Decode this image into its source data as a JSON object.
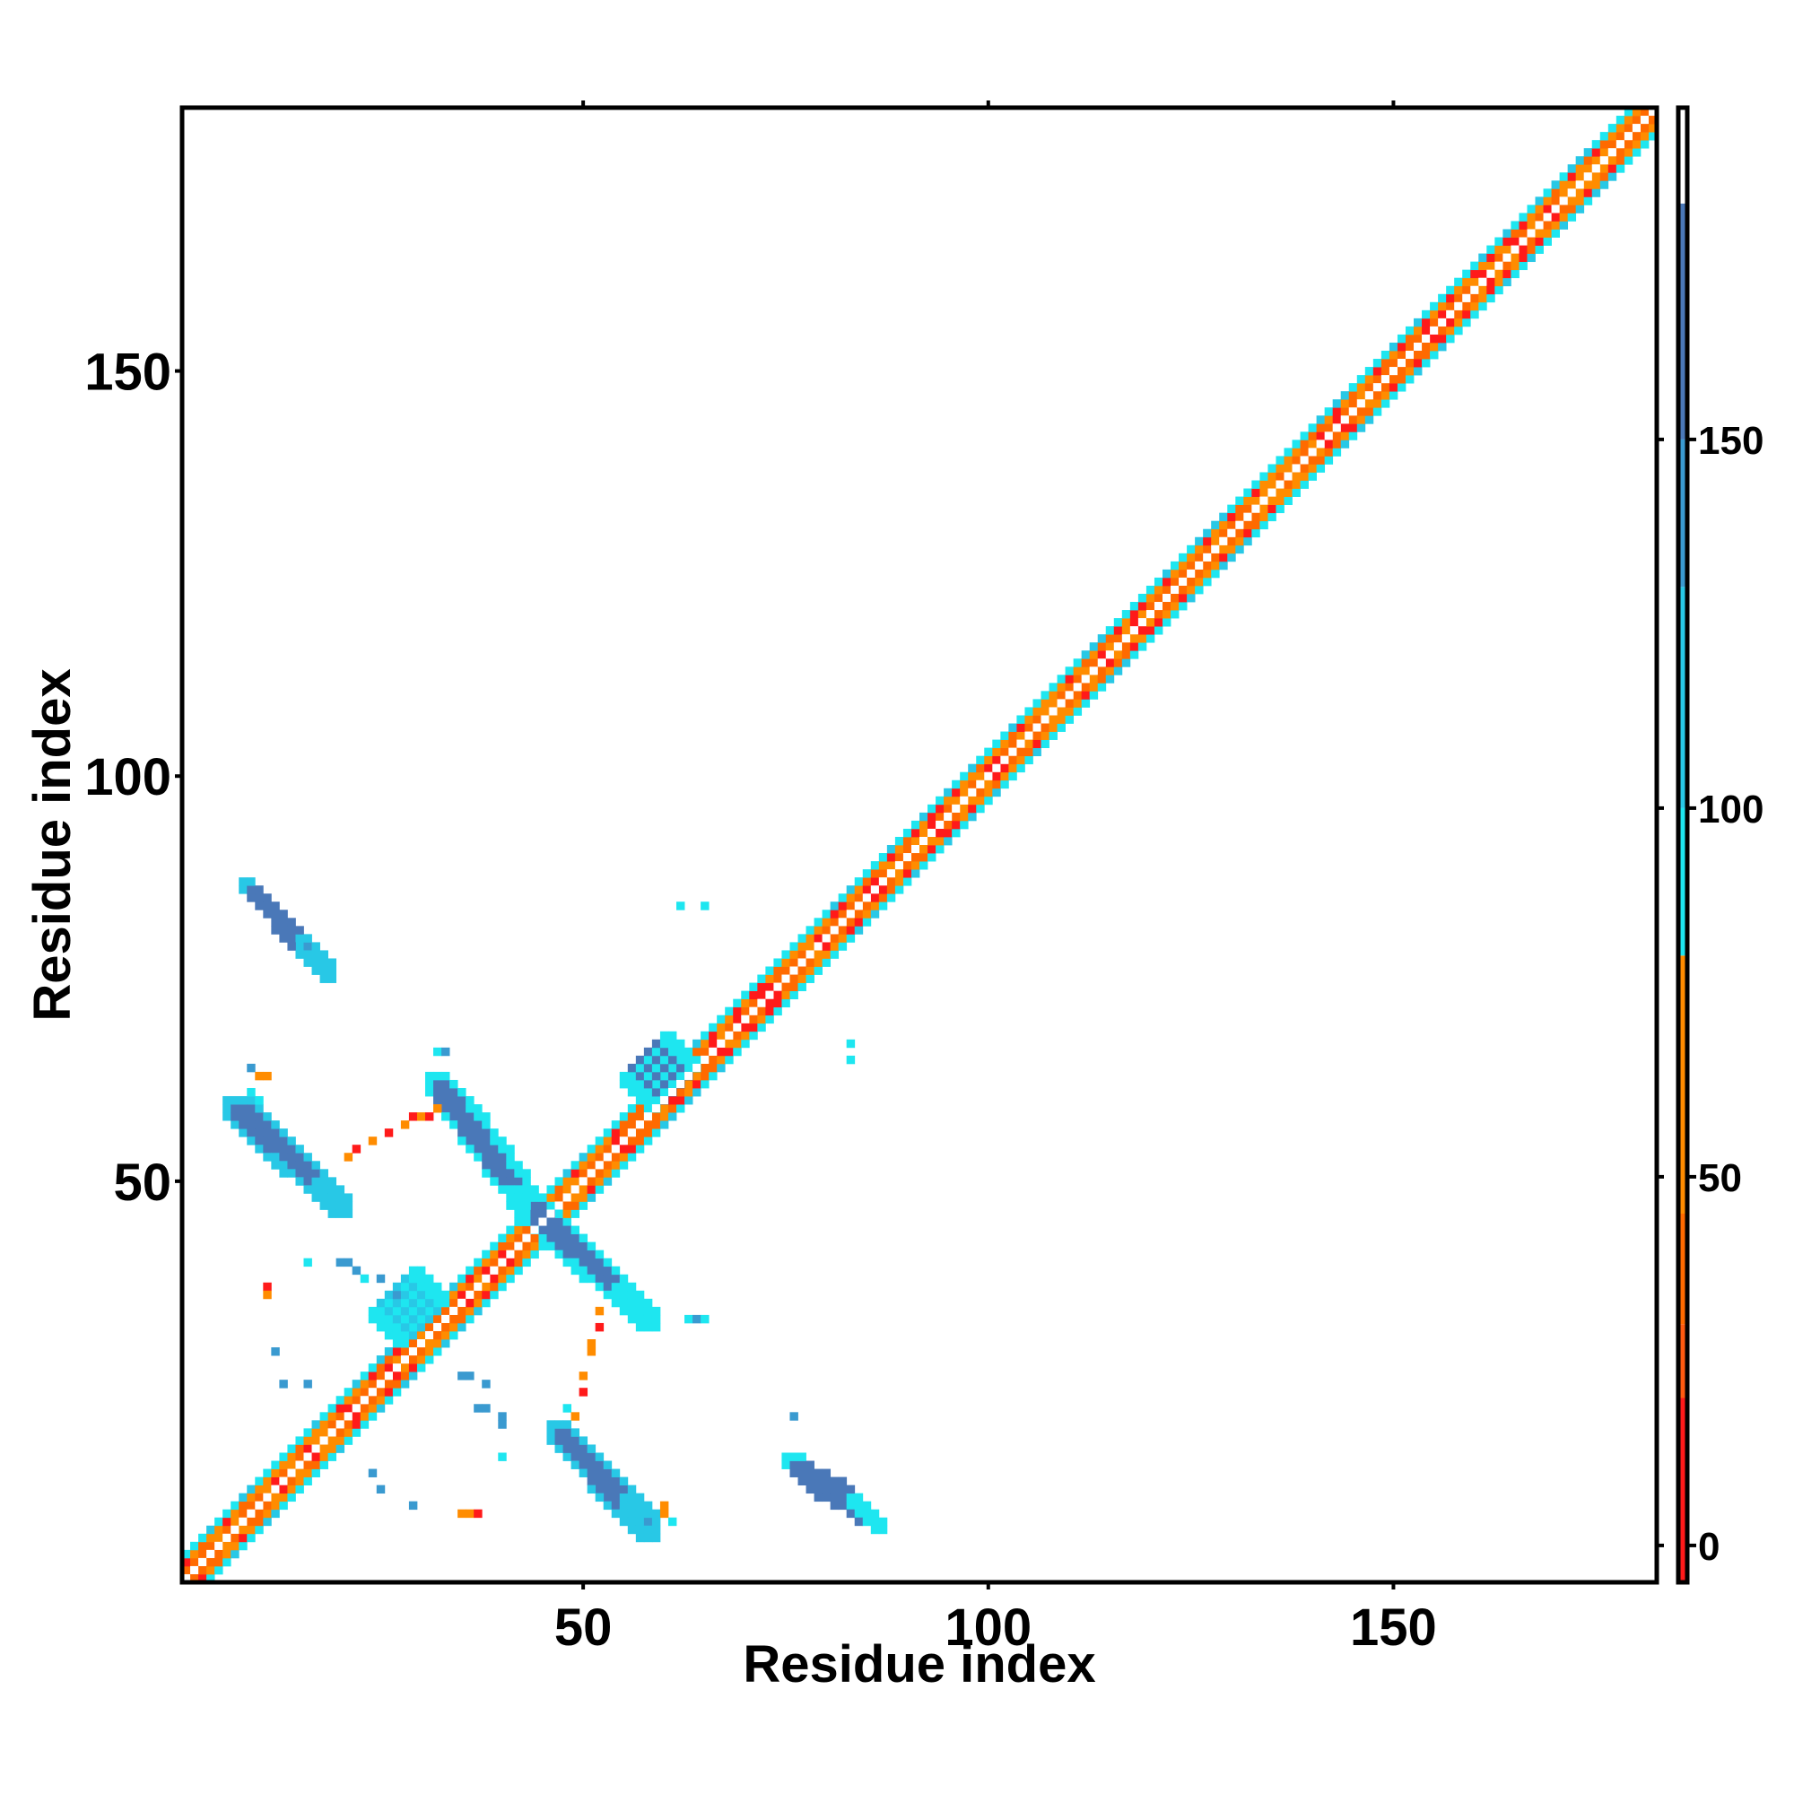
{
  "chart_data": {
    "type": "heatmap",
    "title": "",
    "xlabel": "Residue index",
    "ylabel": "Residue index",
    "xlim": [
      1,
      182
    ],
    "ylim": [
      1,
      182
    ],
    "x_ticks": [
      50,
      100,
      150
    ],
    "y_ticks": [
      50,
      100,
      150
    ],
    "grid": false,
    "colorbar": {
      "ticks": [
        0,
        50,
        100,
        150
      ],
      "range": [
        -5,
        195
      ],
      "bands": [
        {
          "from": -5,
          "to": 20,
          "color": "#ff1a1a"
        },
        {
          "from": 20,
          "to": 30,
          "color": "#ff5a10"
        },
        {
          "from": 30,
          "to": 45,
          "color": "#ff6a00"
        },
        {
          "from": 45,
          "to": 80,
          "color": "#ff8c00"
        },
        {
          "from": 80,
          "to": 100,
          "color": "#1ee6f0"
        },
        {
          "from": 100,
          "to": 130,
          "color": "#28c8e6"
        },
        {
          "from": 130,
          "to": 150,
          "color": "#3a9ad0"
        },
        {
          "from": 150,
          "to": 182,
          "color": "#4a78b8"
        },
        {
          "from": 182,
          "to": 195,
          "color": "#ffffff"
        }
      ]
    },
    "diagonal_band": {
      "residues": [
        1,
        182
      ],
      "near_colors": [
        "#ff1a1a",
        "#ff6a00",
        "#ff8c00"
      ],
      "far_colors": [
        "#28c8e6",
        "#1ee6f0"
      ]
    },
    "contact_regions": [
      {
        "name": "sheet-8-16-vs-77-85",
        "from": [
          10,
          85
        ],
        "to": [
          17,
          77
        ],
        "half_width": 1.4,
        "color": "#4a78b8",
        "edge_color": "#28c8e6"
      },
      {
        "name": "sheet-8-20-vs-48-58",
        "from": [
          8,
          58
        ],
        "to": [
          19,
          48
        ],
        "half_width": 1.8,
        "color": "#4a78b8",
        "edge_color": "#28c8e6"
      },
      {
        "name": "sheet-33-48-vs-43-64",
        "from": [
          33,
          61
        ],
        "to": [
          44,
          46
        ],
        "half_width": 1.8,
        "color": "#4a78b8",
        "edge_color": "#1ee6f0"
      },
      {
        "name": "sheet-43-58-vs-33-46",
        "from": [
          44,
          46
        ],
        "to": [
          57,
          34
        ],
        "half_width": 1.8,
        "color": "#4a78b8",
        "edge_color": "#1ee6f0"
      },
      {
        "name": "sheet-48-58-vs-8-17",
        "from": [
          48,
          18
        ],
        "to": [
          57,
          8
        ],
        "half_width": 1.6,
        "color": "#4a78b8",
        "edge_color": "#28c8e6"
      },
      {
        "name": "sheet-77-85-vs-10-15",
        "from": [
          77,
          14
        ],
        "to": [
          85,
          9
        ],
        "half_width": 1.3,
        "color": "#4a78b8",
        "edge_color": "#1ee6f0"
      },
      {
        "name": "contact-26-34-vs-32-37",
        "from": [
          26,
          32
        ],
        "to": [
          31,
          37
        ],
        "half_width": 1.2,
        "color": "#28c8e6",
        "edge_color": "#1ee6f0"
      },
      {
        "name": "contact-55-60-vs-60-68",
        "from": [
          57,
          61
        ],
        "to": [
          62,
          66
        ],
        "half_width": 1.2,
        "color": "#4a78b8",
        "edge_color": "#1ee6f0"
      }
    ],
    "scattered_cells": [
      {
        "x": 9,
        "y": 64,
        "v": 140
      },
      {
        "x": 10,
        "y": 63,
        "v": 60
      },
      {
        "x": 11,
        "y": 63,
        "v": 60
      },
      {
        "x": 9,
        "y": 61,
        "v": 95
      },
      {
        "x": 10,
        "y": 60,
        "v": 95
      },
      {
        "x": 16,
        "y": 79,
        "v": 140
      },
      {
        "x": 11,
        "y": 37,
        "v": 10
      },
      {
        "x": 11,
        "y": 36,
        "v": 60
      },
      {
        "x": 16,
        "y": 40,
        "v": 95
      },
      {
        "x": 20,
        "y": 40,
        "v": 140
      },
      {
        "x": 21,
        "y": 40,
        "v": 140
      },
      {
        "x": 22,
        "y": 39,
        "v": 140
      },
      {
        "x": 23,
        "y": 38,
        "v": 95
      },
      {
        "x": 25,
        "y": 38,
        "v": 140
      },
      {
        "x": 27,
        "y": 36,
        "v": 140
      },
      {
        "x": 12,
        "y": 29,
        "v": 140
      },
      {
        "x": 13,
        "y": 25,
        "v": 140
      },
      {
        "x": 16,
        "y": 25,
        "v": 140
      },
      {
        "x": 24,
        "y": 14,
        "v": 140
      },
      {
        "x": 25,
        "y": 12,
        "v": 140
      },
      {
        "x": 29,
        "y": 10,
        "v": 140
      },
      {
        "x": 35,
        "y": 26,
        "v": 140
      },
      {
        "x": 36,
        "y": 26,
        "v": 140
      },
      {
        "x": 38,
        "y": 25,
        "v": 140
      },
      {
        "x": 37,
        "y": 22,
        "v": 140
      },
      {
        "x": 38,
        "y": 22,
        "v": 140
      },
      {
        "x": 40,
        "y": 21,
        "v": 140
      },
      {
        "x": 40,
        "y": 20,
        "v": 140
      },
      {
        "x": 40,
        "y": 16,
        "v": 95
      },
      {
        "x": 35,
        "y": 9,
        "v": 60
      },
      {
        "x": 36,
        "y": 9,
        "v": 60
      },
      {
        "x": 37,
        "y": 9,
        "v": 10
      },
      {
        "x": 21,
        "y": 53,
        "v": 60
      },
      {
        "x": 22,
        "y": 54,
        "v": 10
      },
      {
        "x": 24,
        "y": 55,
        "v": 60
      },
      {
        "x": 26,
        "y": 56,
        "v": 10
      },
      {
        "x": 28,
        "y": 57,
        "v": 60
      },
      {
        "x": 29,
        "y": 58,
        "v": 10
      },
      {
        "x": 30,
        "y": 58,
        "v": 60
      },
      {
        "x": 31,
        "y": 58,
        "v": 10
      },
      {
        "x": 32,
        "y": 59,
        "v": 60
      },
      {
        "x": 32,
        "y": 66,
        "v": 95
      },
      {
        "x": 33,
        "y": 66,
        "v": 140
      },
      {
        "x": 52,
        "y": 34,
        "v": 60
      },
      {
        "x": 52,
        "y": 32,
        "v": 10
      },
      {
        "x": 51,
        "y": 30,
        "v": 60
      },
      {
        "x": 51,
        "y": 29,
        "v": 60
      },
      {
        "x": 50,
        "y": 26,
        "v": 60
      },
      {
        "x": 50,
        "y": 24,
        "v": 10
      },
      {
        "x": 48,
        "y": 22,
        "v": 95
      },
      {
        "x": 49,
        "y": 21,
        "v": 60
      },
      {
        "x": 58,
        "y": 8,
        "v": 140
      },
      {
        "x": 60,
        "y": 9,
        "v": 60
      },
      {
        "x": 60,
        "y": 10,
        "v": 60
      },
      {
        "x": 61,
        "y": 8,
        "v": 95
      },
      {
        "x": 63,
        "y": 33,
        "v": 95
      },
      {
        "x": 64,
        "y": 33,
        "v": 140
      },
      {
        "x": 65,
        "y": 33,
        "v": 95
      },
      {
        "x": 62,
        "y": 84,
        "v": 95
      },
      {
        "x": 65,
        "y": 84,
        "v": 95
      },
      {
        "x": 76,
        "y": 21,
        "v": 140
      },
      {
        "x": 83,
        "y": 67,
        "v": 95
      },
      {
        "x": 83,
        "y": 65,
        "v": 95
      }
    ]
  }
}
